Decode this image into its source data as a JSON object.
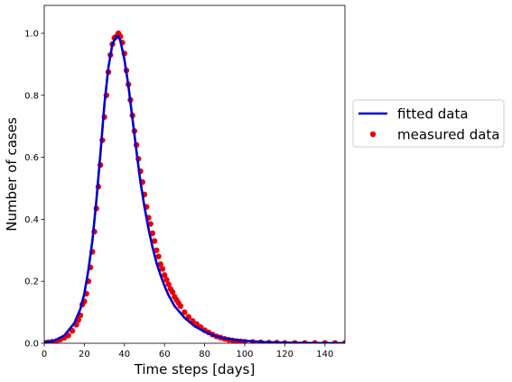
{
  "chart_data": {
    "type": "line",
    "title": "",
    "xlabel": "Time steps [days]",
    "ylabel": "Number of cases",
    "xlim": [
      0,
      150
    ],
    "ylim": [
      0,
      1.09
    ],
    "xticks": [
      0,
      20,
      40,
      60,
      80,
      100,
      120,
      140
    ],
    "yticks": [
      0.0,
      0.2,
      0.4,
      0.6,
      0.8,
      1.0
    ],
    "xtick_labels": [
      "0",
      "20",
      "40",
      "60",
      "80",
      "100",
      "120",
      "140"
    ],
    "ytick_labels": [
      "0.0",
      "0.2",
      "0.4",
      "0.6",
      "0.8",
      "1.0"
    ],
    "grid": false,
    "legend_position": "right, outside plot",
    "colors": {
      "fitted": "#0000cc",
      "measured": "#ee0000"
    },
    "series": [
      {
        "name": "fitted data",
        "kind": "line",
        "x": [
          0,
          5,
          10,
          15,
          18,
          20,
          22,
          24,
          26,
          28,
          30,
          32,
          34,
          36,
          37,
          38,
          40,
          42,
          44,
          46,
          48,
          50,
          52,
          54,
          56,
          58,
          60,
          62,
          65,
          70,
          75,
          80,
          85,
          90,
          95,
          100,
          110,
          120,
          130,
          140,
          150
        ],
        "y": [
          0.003,
          0.008,
          0.025,
          0.065,
          0.11,
          0.16,
          0.235,
          0.33,
          0.46,
          0.61,
          0.77,
          0.89,
          0.965,
          0.99,
          0.99,
          0.975,
          0.915,
          0.83,
          0.725,
          0.62,
          0.52,
          0.44,
          0.37,
          0.31,
          0.26,
          0.22,
          0.185,
          0.155,
          0.12,
          0.082,
          0.055,
          0.037,
          0.024,
          0.016,
          0.011,
          0.008,
          0.004,
          0.002,
          0.001,
          0.0005,
          0.0002
        ]
      },
      {
        "name": "measured data",
        "kind": "scatter",
        "x": [
          0,
          2,
          4,
          6,
          8,
          10,
          12,
          14,
          16,
          17,
          18,
          19,
          20,
          21,
          22,
          23,
          24,
          25,
          26,
          27,
          28,
          29,
          30,
          31,
          32,
          33,
          34,
          35,
          36,
          37,
          38,
          39,
          40,
          41,
          42,
          43,
          44,
          45,
          46,
          47,
          48,
          49,
          50,
          51,
          52,
          53,
          54,
          55,
          56,
          57,
          58,
          59,
          60,
          61,
          62,
          63,
          64,
          65,
          66,
          67,
          68,
          70,
          72,
          74,
          76,
          78,
          80,
          82,
          84,
          86,
          88,
          90,
          92,
          94,
          96,
          98,
          100,
          104,
          108,
          112,
          116,
          120,
          125,
          130,
          135,
          140,
          145,
          150
        ],
        "y": [
          0.002,
          0.003,
          0.005,
          0.007,
          0.012,
          0.018,
          0.025,
          0.04,
          0.06,
          0.075,
          0.09,
          0.125,
          0.135,
          0.16,
          0.2,
          0.245,
          0.295,
          0.36,
          0.435,
          0.505,
          0.575,
          0.655,
          0.73,
          0.8,
          0.875,
          0.93,
          0.965,
          0.985,
          0.99,
          1.0,
          0.99,
          0.97,
          0.935,
          0.88,
          0.835,
          0.785,
          0.735,
          0.685,
          0.64,
          0.595,
          0.555,
          0.52,
          0.48,
          0.44,
          0.405,
          0.385,
          0.355,
          0.33,
          0.3,
          0.28,
          0.255,
          0.24,
          0.22,
          0.205,
          0.19,
          0.175,
          0.165,
          0.15,
          0.14,
          0.13,
          0.12,
          0.1,
          0.085,
          0.072,
          0.062,
          0.052,
          0.042,
          0.035,
          0.028,
          0.022,
          0.018,
          0.014,
          0.011,
          0.009,
          0.007,
          0.006,
          0.005,
          0.004,
          0.003,
          0.002,
          0.002,
          0.001,
          0.001,
          0.001,
          0.001,
          0.001,
          0.001,
          0.001
        ]
      }
    ]
  }
}
